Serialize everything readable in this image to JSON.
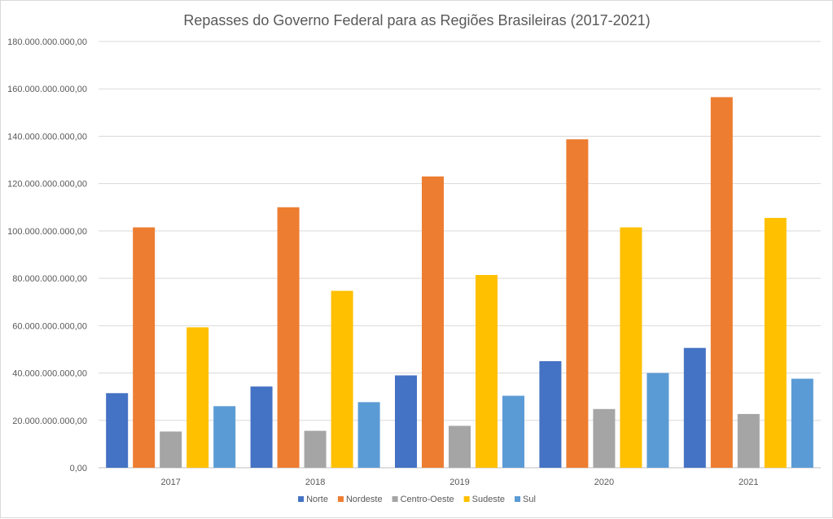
{
  "chart_data": {
    "type": "bar",
    "title": "Repasses do Governo Federal para as Regiões Brasileiras (2017-2021)",
    "xlabel": "",
    "ylabel": "",
    "categories": [
      "2017",
      "2018",
      "2019",
      "2020",
      "2021"
    ],
    "ylim": [
      0,
      180000000000
    ],
    "ytick_step": 20000000000,
    "ytick_labels": [
      "0,00",
      "20.000.000.000,00",
      "40.000.000.000,00",
      "60.000.000.000,00",
      "80.000.000.000,00",
      "100.000.000.000,00",
      "120.000.000.000,00",
      "140.000.000.000,00",
      "160.000.000.000,00",
      "180.000.000.000,00"
    ],
    "grid": true,
    "legend_position": "bottom",
    "series": [
      {
        "name": "Norte",
        "color": "#4472c4",
        "values": [
          31500000000,
          34300000000,
          39000000000,
          45000000000,
          50600000000
        ]
      },
      {
        "name": "Nordeste",
        "color": "#ed7d31",
        "values": [
          101500000000,
          110000000000,
          123000000000,
          138700000000,
          156500000000
        ]
      },
      {
        "name": "Centro-Oeste",
        "color": "#a5a5a5",
        "values": [
          15300000000,
          15600000000,
          17700000000,
          24800000000,
          22700000000
        ]
      },
      {
        "name": "Sudeste",
        "color": "#ffc000",
        "values": [
          59300000000,
          74700000000,
          81400000000,
          101500000000,
          105500000000
        ]
      },
      {
        "name": "Sul",
        "color": "#5b9bd5",
        "values": [
          26000000000,
          27700000000,
          30400000000,
          40000000000,
          37600000000
        ]
      }
    ]
  }
}
